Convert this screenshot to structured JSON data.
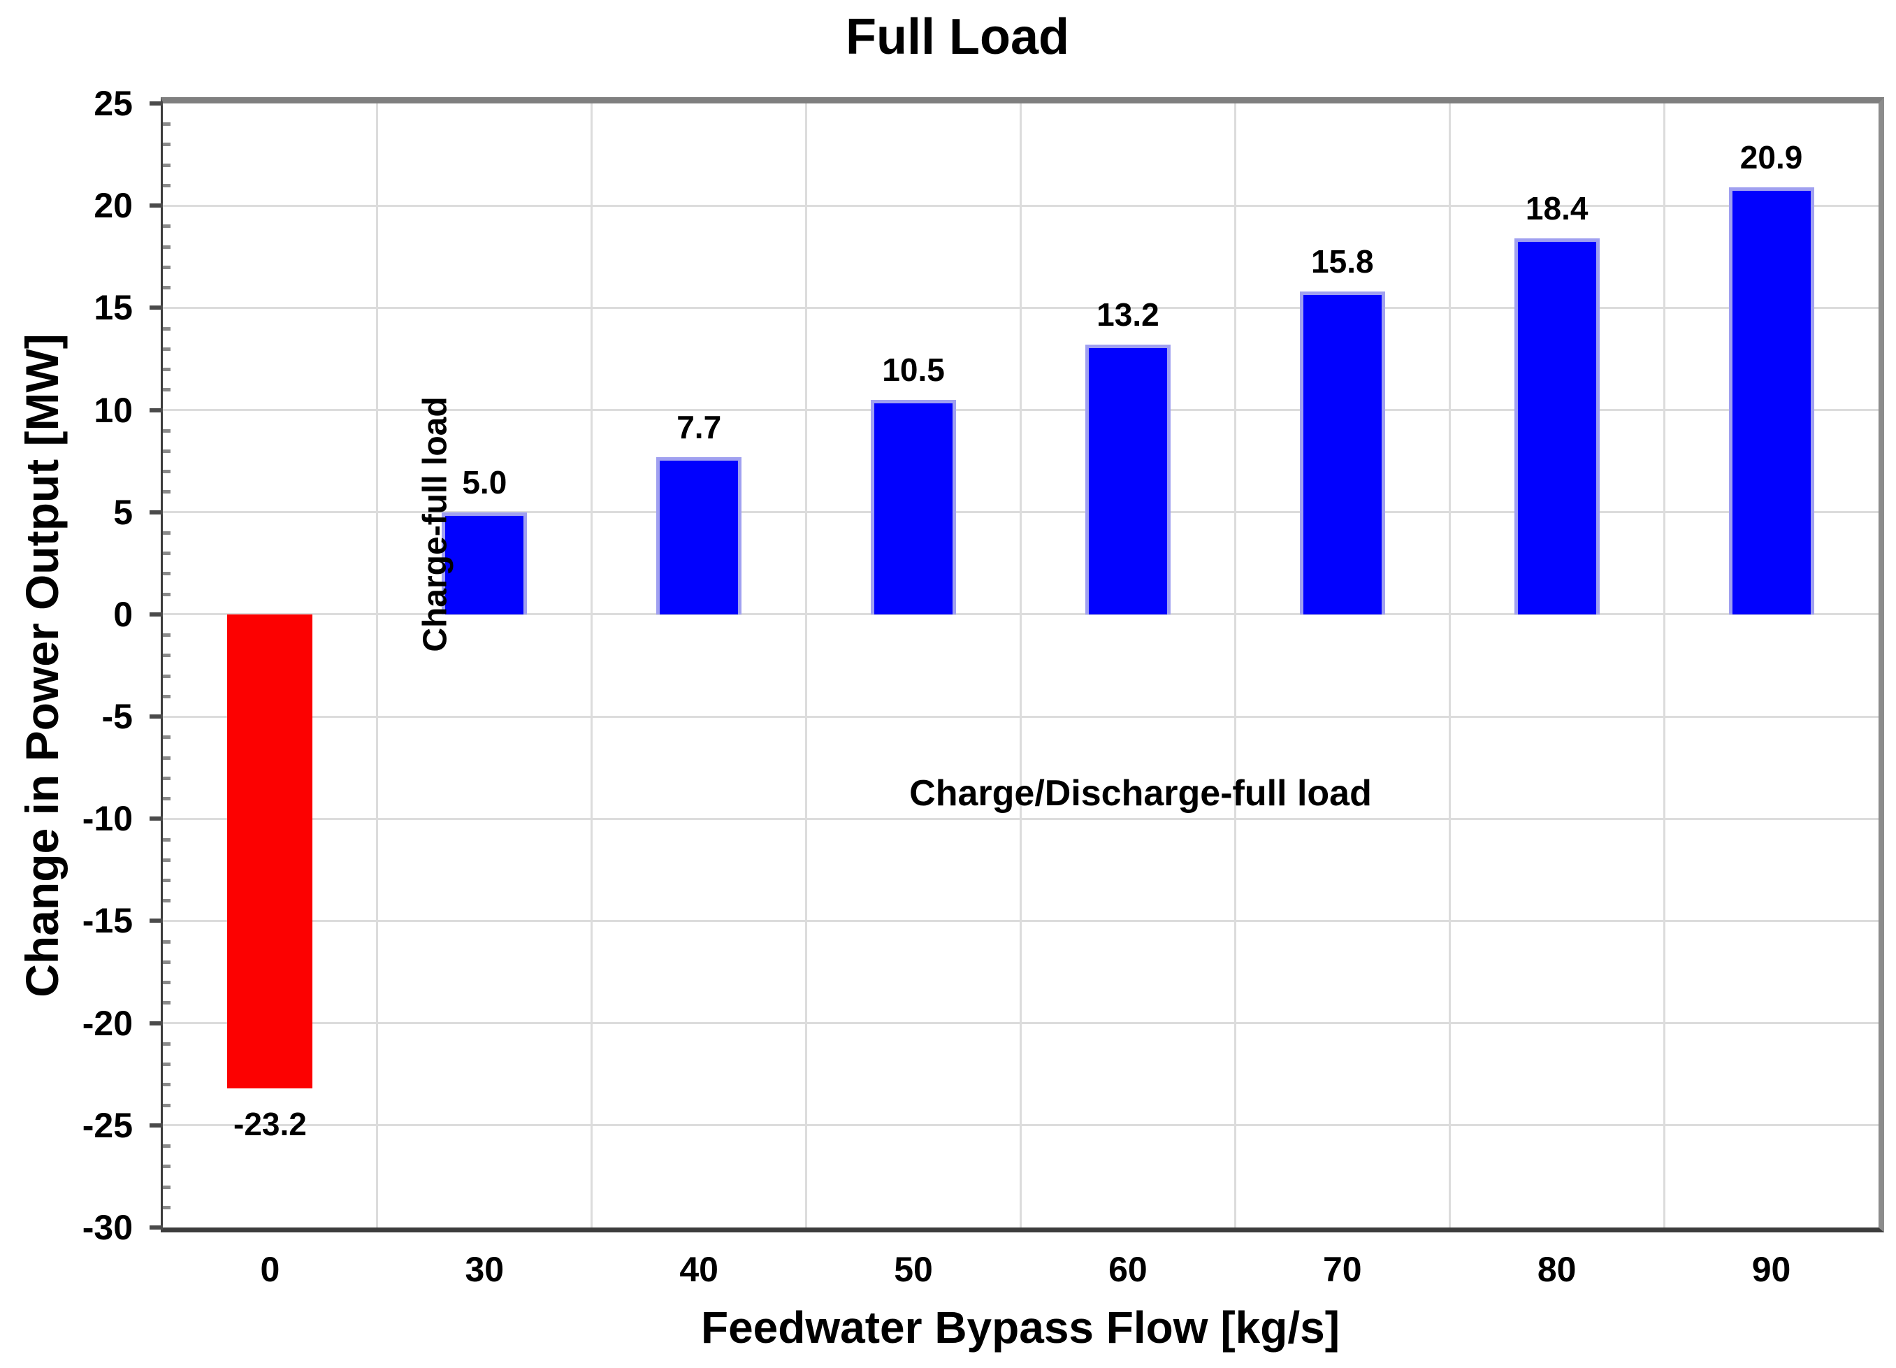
{
  "chart_data": {
    "type": "bar",
    "title": "Full Load",
    "xlabel": "Feedwater Bypass Flow [kg/s]",
    "ylabel": "Change in Power Output [MW]",
    "categories": [
      "0",
      "30",
      "40",
      "50",
      "60",
      "70",
      "80",
      "90"
    ],
    "values": [
      -23.2,
      5.0,
      7.7,
      10.5,
      13.2,
      15.8,
      18.4,
      20.9
    ],
    "value_labels": [
      "-23.2",
      "5.0",
      "7.7",
      "10.5",
      "13.2",
      "15.8",
      "18.4",
      "20.9"
    ],
    "ylim": [
      -30,
      25
    ],
    "y_major_step": 5,
    "y_minor_step": 1,
    "y_tick_labels": [
      "25",
      "20",
      "15",
      "10",
      "5",
      "0",
      "-5",
      "-10",
      "-15",
      "-20",
      "-25",
      "-30"
    ],
    "grid": true,
    "legend": "none",
    "annotations": [
      {
        "text": "Charge-full load",
        "orientation": "vertical"
      },
      {
        "text": "Charge/Discharge-full load",
        "orientation": "horizontal"
      }
    ],
    "colors": {
      "positive_bar": "#0101fe",
      "positive_bar_edge": "#a0a0f0",
      "negative_bar": "#fc0101",
      "gridline": "#dcdcdc",
      "plot_border_top_right": "#7f7f7f",
      "axis_dark": "#3c3c3c",
      "major_tick": "#4a4a4a",
      "minor_tick": "#8a8a8a",
      "text": "#000000"
    }
  }
}
